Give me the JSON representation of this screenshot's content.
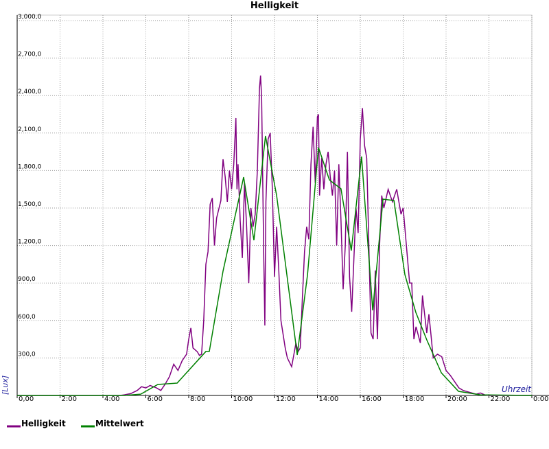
{
  "chart_data": {
    "type": "line",
    "title": "Helligkeit",
    "y_label": "[Lux]",
    "x_label": "Uhrzeit",
    "xlim": [
      0,
      24
    ],
    "ylim": [
      0,
      3000
    ],
    "grid": true,
    "legend": "bottom-left",
    "xticks": [
      {
        "value": 0,
        "label": "0,00"
      },
      {
        "value": 2,
        "label": "2:00"
      },
      {
        "value": 4,
        "label": "4:00"
      },
      {
        "value": 6,
        "label": "6:00"
      },
      {
        "value": 8,
        "label": "8:00"
      },
      {
        "value": 10,
        "label": "10:00"
      },
      {
        "value": 12,
        "label": "12:00"
      },
      {
        "value": 14,
        "label": "14:00"
      },
      {
        "value": 16,
        "label": "16:00"
      },
      {
        "value": 18,
        "label": "18:00"
      },
      {
        "value": 20,
        "label": "20:00"
      },
      {
        "value": 22,
        "label": "22:00"
      },
      {
        "value": 24,
        "label": "0:00"
      }
    ],
    "yticks": [
      {
        "value": 300,
        "label": "300,0"
      },
      {
        "value": 600,
        "label": "600,0"
      },
      {
        "value": 900,
        "label": "900,0"
      },
      {
        "value": 1200,
        "label": "1,200,0"
      },
      {
        "value": 1500,
        "label": "1,500,0"
      },
      {
        "value": 1800,
        "label": "1,800,0"
      },
      {
        "value": 2100,
        "label": "2,100,0"
      },
      {
        "value": 2400,
        "label": "2,400,0"
      },
      {
        "value": 2700,
        "label": "2,700,0"
      },
      {
        "value": 3000,
        "label": "3,000,0"
      }
    ],
    "series": [
      {
        "name": "Helligkeit",
        "color": "#800080",
        "x": [
          0,
          4.8,
          5,
          5.3,
          5.6,
          5.8,
          6.0,
          6.2,
          6.5,
          6.7,
          6.9,
          7.1,
          7.3,
          7.5,
          7.7,
          7.9,
          8.0,
          8.1,
          8.2,
          8.4,
          8.5,
          8.6,
          8.7,
          8.8,
          8.9,
          9.0,
          9.1,
          9.2,
          9.3,
          9.5,
          9.6,
          9.7,
          9.8,
          9.9,
          10.0,
          10.1,
          10.2,
          10.25,
          10.3,
          10.4,
          10.5,
          10.6,
          10.7,
          10.8,
          10.9,
          11.0,
          11.1,
          11.2,
          11.3,
          11.35,
          11.4,
          11.5,
          11.55,
          11.6,
          11.7,
          11.8,
          11.9,
          12.0,
          12.1,
          12.2,
          12.3,
          12.5,
          12.6,
          12.8,
          13.0,
          13.1,
          13.2,
          13.3,
          13.4,
          13.5,
          13.6,
          13.7,
          13.8,
          13.9,
          14.0,
          14.05,
          14.1,
          14.2,
          14.3,
          14.4,
          14.5,
          14.6,
          14.7,
          14.8,
          14.9,
          15.0,
          15.1,
          15.2,
          15.3,
          15.4,
          15.5,
          15.6,
          15.8,
          15.9,
          16.0,
          16.1,
          16.2,
          16.3,
          16.4,
          16.5,
          16.6,
          16.7,
          16.8,
          16.9,
          17.0,
          17.1,
          17.3,
          17.5,
          17.7,
          17.9,
          18.0,
          18.1,
          18.3,
          18.4,
          18.5,
          18.6,
          18.8,
          18.9,
          19.0,
          19.1,
          19.2,
          19.3,
          19.4,
          19.6,
          19.8,
          20.0,
          20.2,
          20.4,
          20.6,
          20.8,
          21.0,
          21.2,
          21.4,
          21.6,
          21.8,
          22.0,
          24
        ],
        "values": [
          0,
          0,
          5,
          15,
          40,
          70,
          60,
          80,
          60,
          40,
          90,
          150,
          250,
          200,
          280,
          330,
          450,
          540,
          380,
          350,
          320,
          330,
          600,
          1050,
          1150,
          1530,
          1580,
          1200,
          1420,
          1560,
          1890,
          1750,
          1550,
          1800,
          1650,
          1850,
          2220,
          1650,
          1850,
          1400,
          1100,
          1700,
          1350,
          900,
          1500,
          1350,
          1450,
          1800,
          2460,
          2560,
          2380,
          1100,
          560,
          1550,
          2050,
          2100,
          1650,
          950,
          1350,
          1000,
          600,
          380,
          300,
          230,
          420,
          350,
          380,
          780,
          1150,
          1350,
          1250,
          1850,
          2150,
          1700,
          2230,
          2250,
          1600,
          1900,
          1650,
          1850,
          1950,
          1750,
          1600,
          1800,
          1200,
          1850,
          1400,
          850,
          1200,
          1950,
          950,
          670,
          1500,
          1300,
          2050,
          2300,
          2000,
          1900,
          1200,
          500,
          450,
          1000,
          450,
          1200,
          1600,
          1500,
          1650,
          1550,
          1650,
          1450,
          1500,
          1300,
          900,
          900,
          450,
          550,
          420,
          800,
          650,
          500,
          650,
          480,
          300,
          330,
          310,
          200,
          160,
          110,
          60,
          40,
          30,
          20,
          10,
          20,
          5,
          0,
          0
        ]
      },
      {
        "name": "Mittelwert",
        "color": "#008000",
        "x": [
          0,
          5.0,
          5.76,
          6.56,
          7.46,
          8.8,
          8.96,
          9.6,
          10.56,
          11.04,
          11.58,
          12.1,
          13.06,
          13.54,
          14.05,
          14.56,
          15.1,
          15.58,
          16.06,
          16.58,
          17.06,
          17.57,
          18.08,
          18.59,
          19.1,
          19.78,
          20.58,
          21.6,
          24
        ],
        "values": [
          0,
          0,
          10,
          88,
          99,
          352,
          352,
          995,
          1747,
          1242,
          2077,
          1599,
          324,
          967,
          1984,
          1725,
          1654,
          1159,
          1912,
          681,
          1571,
          1560,
          967,
          665,
          445,
          181,
          33,
          5,
          0
        ]
      }
    ]
  }
}
